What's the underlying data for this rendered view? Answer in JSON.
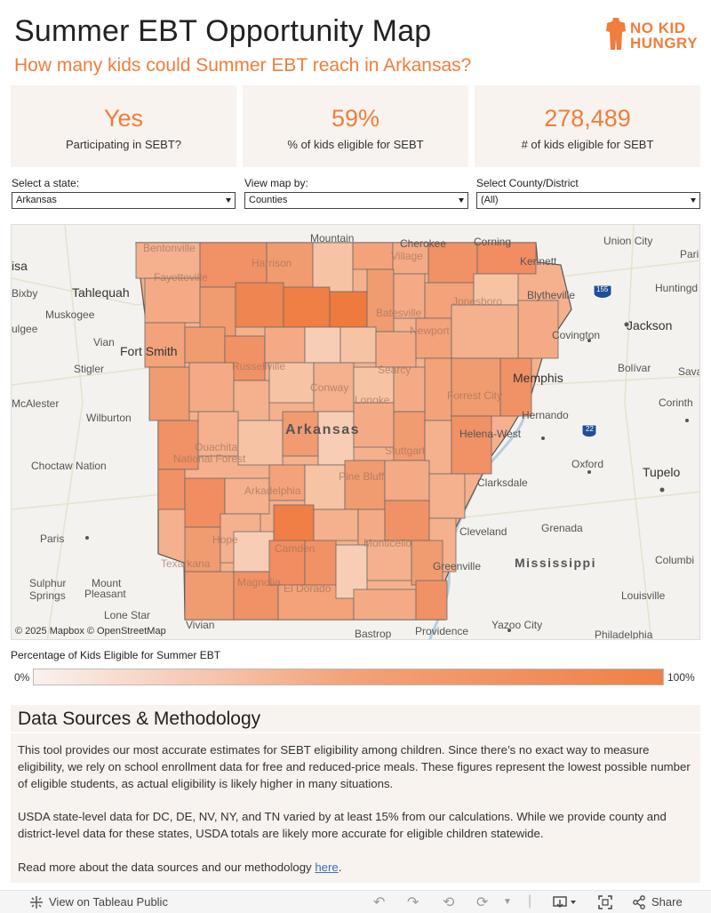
{
  "header": {
    "title": "Summer EBT Opportunity Map",
    "subtitle": "How many kids could Summer EBT reach in Arkansas?",
    "logo_line1": "NO KID",
    "logo_line2": "HUNGRY"
  },
  "kpis": [
    {
      "value": "Yes",
      "label": "Participating in SEBT?"
    },
    {
      "value": "59%",
      "label": "% of kids eligible for SEBT"
    },
    {
      "value": "278,489",
      "label": "# of kids eligible for SEBT"
    }
  ],
  "filters": [
    {
      "label": "Select a state:",
      "value": "Arkansas"
    },
    {
      "label": "View map by:",
      "value": "Counties"
    },
    {
      "label": "Select County/District",
      "value": "(All)"
    }
  ],
  "map": {
    "state_label": "Arkansas",
    "copyright": "© 2025 Mapbox  © OpenStreetMap",
    "places": {
      "mountain": "Mountain",
      "cherokee": "Cherokee",
      "corning": "Corning",
      "union_city": "Union City",
      "isa": "isa",
      "bentonville": "Bentonville",
      "harrison": "Harrison",
      "village": "Village",
      "kennett": "Kennett",
      "pari": "Pari",
      "bixby": "Bixby",
      "tahlequah": "Tahlequah",
      "fayetteville": "Fayetteville",
      "jonesboro": "Jonesboro",
      "blytheville": "Blytheville",
      "huntingd": "Huntingd",
      "muskogee": "Muskogee",
      "batesville": "Batesville",
      "newport": "Newport",
      "jackson": "Jackson",
      "ulgee": "ulgee",
      "vian": "Vian",
      "fort_smith": "Fort Smith",
      "covington": "Covington",
      "stigler": "Stigler",
      "russellville": "Russellville",
      "searcy": "Searcy",
      "conway": "Conway",
      "bolivar": "Bolívar",
      "sava": "Sava",
      "memphis": "Memphis",
      "mcalester": "McAlester",
      "forrest_city": "Forrest City",
      "lonoke": "Lonoke",
      "hernando": "Hernando",
      "corinth": "Corinth",
      "wilburton": "Wilburton",
      "helena_west": "Helena-West",
      "ouachita": "Ouachita",
      "national_forest": "National Forest",
      "stuttgart": "Stuttgart",
      "oxford": "Oxford",
      "tupelo": "Tupelo",
      "choctaw_nation": "Choctaw Nation",
      "pine_bluff": "Pine Bluff",
      "clarksdale": "Clarksdale",
      "arkadelphia": "Arkadelphia",
      "hope": "Hope",
      "paris": "Paris",
      "cleveland": "Cleveland",
      "grenada": "Grenada",
      "monticello": "Monticello",
      "camden": "Camden",
      "texarkana": "Texarkana",
      "greenville": "Greenville",
      "mississippi": "Mississippi",
      "columbi": "Columbi",
      "sulphur_springs_1": "Sulphur",
      "sulphur_springs_2": "Springs",
      "mount_pleasant_1": "Mount",
      "mount_pleasant_2": "Pleasant",
      "magnolia": "Magnolia",
      "el_dorado": "El Dorado",
      "louisville": "Louisville",
      "lone_star": "Lone Star",
      "vivian": "Vivian",
      "bastrop": "Bastrop",
      "providence": "Providence",
      "yazoo_city": "Yazoo City",
      "philadelphia": "Philadelphia",
      "hwy_155": "155",
      "hwy_22": "22"
    }
  },
  "legend": {
    "title": "Percentage of Kids Eligible for Summer EBT",
    "min": "0%",
    "max": "100%"
  },
  "methodology": {
    "heading": "Data Sources & Methodology",
    "p1": "This tool provides our most accurate estimates for SEBT eligibility among children. Since there’s no exact way to measure eligibility, we rely on school enrollment data for free and reduced-price meals. These figures represent the lowest possible number of eligible students, as actual eligibility is likely higher in many situations.",
    "p2": "USDA state-level data for DC, DE, NV, NY, and TN varied by at least 15% from our calculations. While we provide county and district-level data for these states, USDA totals are likely more accurate for eligible children statewide.",
    "p3_prefix": "Read more about the data sources and our methodology ",
    "p3_link": "here",
    "p3_suffix": "."
  },
  "toolbar": {
    "view_on": "View on Tableau Public",
    "share": "Share"
  },
  "colors": {
    "accent": "#f07d3a",
    "panel": "#f8f3ef"
  }
}
